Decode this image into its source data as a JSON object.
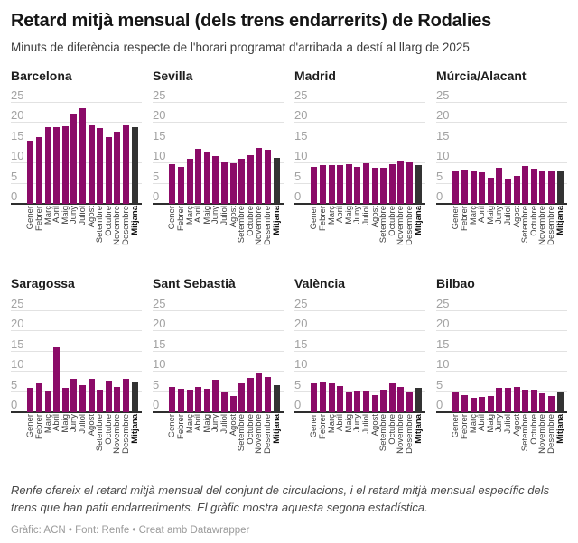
{
  "header": {
    "title": "Retard mitjà mensual (dels trens endarrerits) de Rodalies",
    "subtitle": "Minuts de diferència respecte de l'horari programat d'arribada a destí al llarg de 2025"
  },
  "colors": {
    "bar": "#8b0b68",
    "mean_bar": "#333333",
    "gridline": "#e2e2e2",
    "axis": "#2e2e2e",
    "tick_label": "#a2a2a2"
  },
  "chart_data": {
    "type": "bar",
    "layout": "small-multiples-4x2",
    "unit": "minuts",
    "grid": true,
    "ylim": [
      0,
      25
    ],
    "yticks": [
      0,
      5,
      10,
      15,
      20,
      25
    ],
    "categories": [
      "Gener",
      "Febrer",
      "Març",
      "Abril",
      "Maig",
      "Juny",
      "Juliol",
      "Agost",
      "Setembre",
      "Octubre",
      "Novembre",
      "Desembre",
      "Mitjana"
    ],
    "highlight_category": "Mitjana",
    "panels": [
      {
        "title": "Barcelona",
        "values": [
          15.7,
          16.6,
          19.0,
          19.0,
          19.2,
          22.3,
          23.6,
          19.5,
          18.7,
          16.6,
          17.8,
          19.4,
          19.0
        ]
      },
      {
        "title": "Sevilla",
        "values": [
          9.8,
          9.2,
          11.1,
          13.6,
          12.9,
          11.8,
          10.4,
          10.0,
          11.3,
          12.0,
          13.8,
          13.4,
          11.5
        ]
      },
      {
        "title": "Madrid",
        "values": [
          9.3,
          9.6,
          9.7,
          9.7,
          9.9,
          9.2,
          10.0,
          8.9,
          9.0,
          9.9,
          10.8,
          10.3,
          9.7
        ]
      },
      {
        "title": "Múrcia/Alacant",
        "values": [
          8.0,
          8.3,
          8.1,
          7.8,
          6.5,
          9.0,
          6.2,
          6.9,
          9.5,
          8.7,
          8.0,
          8.1,
          8.0
        ]
      },
      {
        "title": "Saragossa",
        "values": [
          6.0,
          7.1,
          5.4,
          16.0,
          6.0,
          8.2,
          6.8,
          8.3,
          5.6,
          7.9,
          6.3,
          8.2,
          7.5
        ]
      },
      {
        "title": "Sant Sebastià",
        "values": [
          6.2,
          5.8,
          5.6,
          6.2,
          5.9,
          8.1,
          5.0,
          4.0,
          7.2,
          8.5,
          9.6,
          8.8,
          6.8
        ]
      },
      {
        "title": "València",
        "values": [
          7.1,
          7.4,
          7.1,
          6.5,
          5.0,
          5.4,
          5.2,
          4.3,
          5.6,
          7.1,
          6.3,
          5.0,
          6.1
        ]
      },
      {
        "title": "Bilbao",
        "values": [
          4.9,
          4.3,
          3.5,
          3.8,
          4.0,
          6.0,
          6.1,
          6.3,
          5.7,
          5.7,
          4.6,
          4.0,
          5.0
        ]
      }
    ]
  },
  "footer": {
    "notes": "Renfe ofereix el retard mitjà mensual del conjunt de circulacions, i el retard mitjà mensual específic dels trens que han patit endarreriments. El gràfic mostra aquesta segona estadística.",
    "credit": "Gràfic: ACN • Font: Renfe • Creat amb Datawrapper"
  }
}
